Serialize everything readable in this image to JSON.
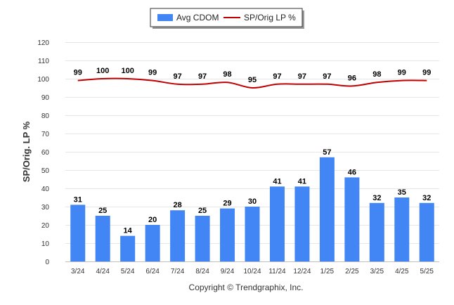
{
  "chart_data": {
    "type": "bar",
    "categories": [
      "3/24",
      "4/24",
      "5/24",
      "6/24",
      "7/24",
      "8/24",
      "9/24",
      "10/24",
      "11/24",
      "12/24",
      "1/25",
      "2/25",
      "3/25",
      "4/25",
      "5/25"
    ],
    "series": [
      {
        "name": "Avg CDOM",
        "type": "bar",
        "color": "#4285f4",
        "values": [
          31,
          25,
          14,
          20,
          28,
          25,
          29,
          30,
          41,
          41,
          57,
          46,
          32,
          35,
          32
        ]
      },
      {
        "name": "SP/Orig LP %",
        "type": "line",
        "color": "#c00000",
        "values": [
          99,
          100,
          100,
          99,
          97,
          97,
          98,
          95,
          97,
          97,
          97,
          96,
          98,
          99,
          99
        ]
      }
    ],
    "ylabel": "SP/Orig. LP %",
    "ylim": [
      0,
      120
    ],
    "yticks": [
      0,
      10,
      20,
      30,
      40,
      50,
      60,
      70,
      80,
      90,
      100,
      110,
      120
    ],
    "grid": true,
    "legend": "top-center",
    "credit": "Copyright © Trendgraphix, Inc."
  }
}
